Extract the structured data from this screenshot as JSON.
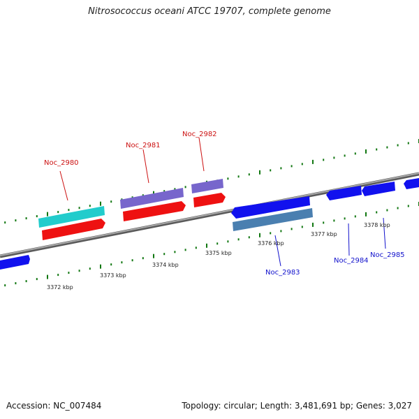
{
  "title": "Nitrosococcus oceani ATCC 19707, complete genome",
  "footer": {
    "accession": "Accession: NC_007484",
    "topology": "Topology: circular; Length: 3,481,691 bp; Genes: 3,027"
  },
  "scale_labels": [
    "3372 kbp",
    "3373 kbp",
    "3374 kbp",
    "3375 kbp",
    "3376 kbp",
    "3377 kbp",
    "3378 kbp"
  ],
  "gene_labels": {
    "above": [
      "Noc_2980",
      "Noc_2981",
      "Noc_2982"
    ],
    "below": [
      "Noc_2983",
      "Noc_2984",
      "Noc_2985"
    ]
  },
  "colors": {
    "backbone": "#8a8a8a",
    "tick": "#117711",
    "forward_cds": "#ee1111",
    "reverse_cds": "#1111ee",
    "cyan_feature": "#22cccc",
    "purple_feature": "#7766cc",
    "steel_feature": "#4a7fb0",
    "label_red": "#cc1111",
    "label_blue": "#1111cc"
  }
}
